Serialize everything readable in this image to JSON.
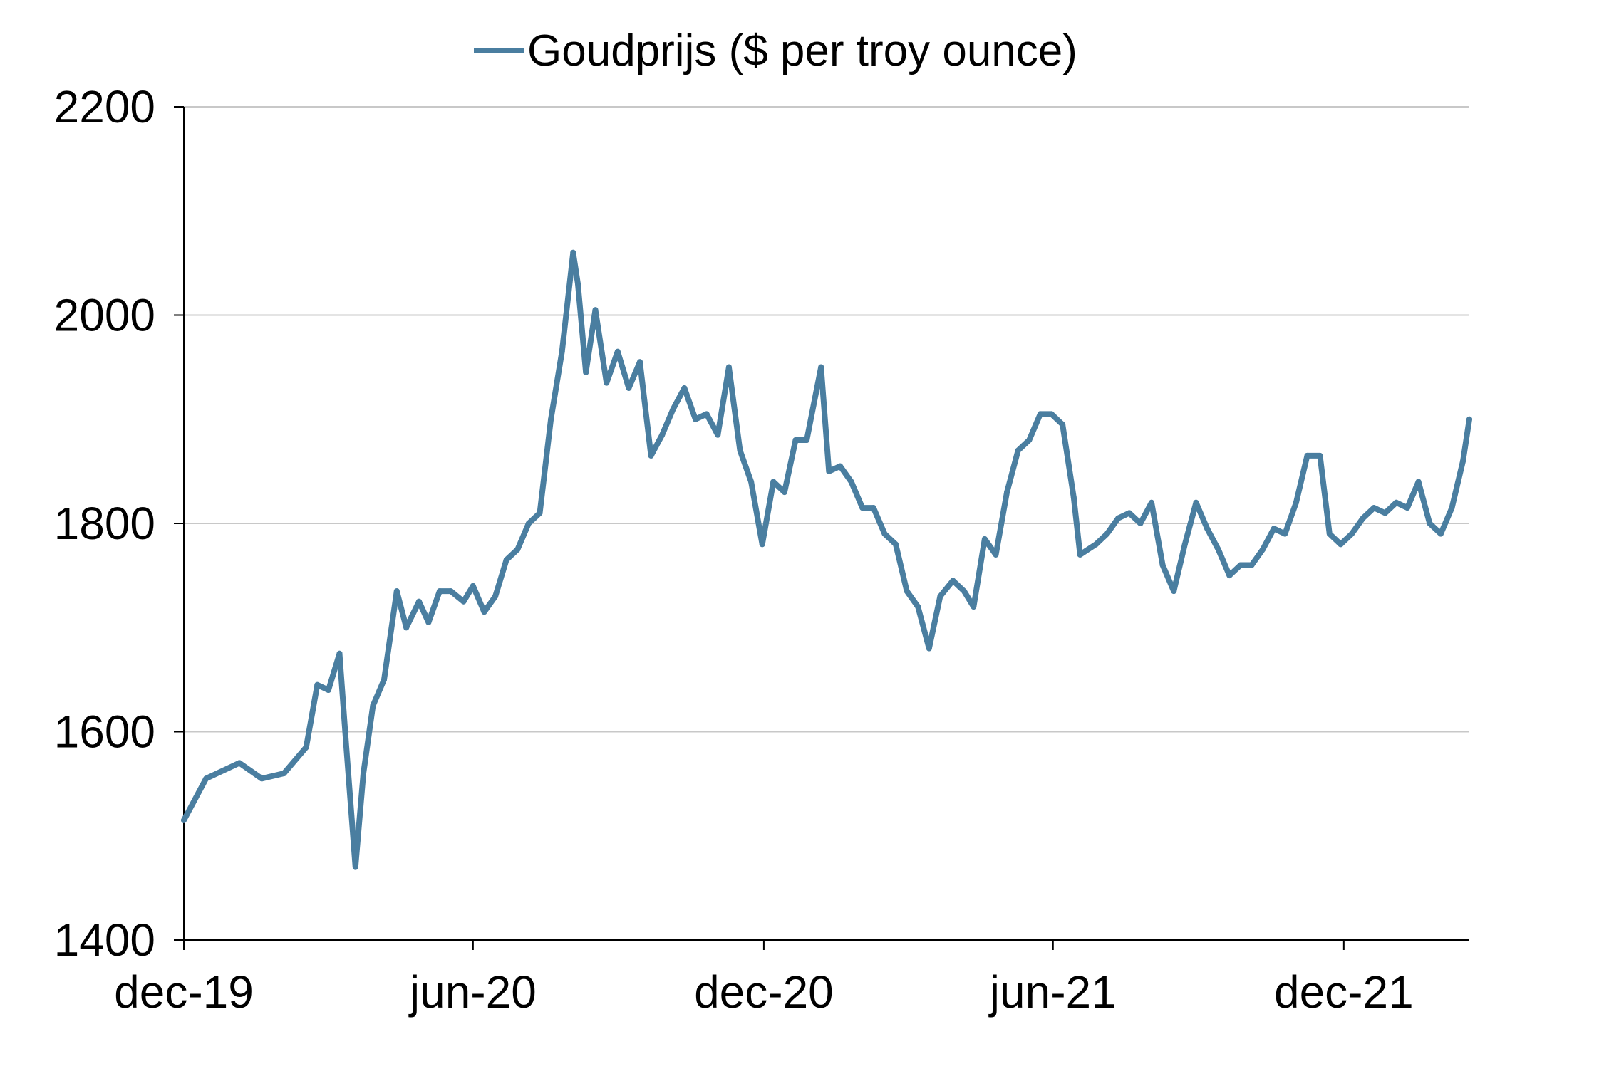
{
  "chart_data": {
    "type": "line",
    "title": "",
    "xlabel": "",
    "ylabel": "",
    "ylim": [
      1400,
      2200
    ],
    "yticks": [
      1400,
      1600,
      1800,
      2000,
      2200
    ],
    "xticks": [
      "dec-19",
      "jun-20",
      "dec-20",
      "jun-21",
      "dec-21"
    ],
    "grid": "horizontal",
    "legend_position": "top-center",
    "colors": {
      "series": "#4a7ea0",
      "grid": "#c8c8c8",
      "axis": "#000000"
    },
    "series": [
      {
        "name": "Goudprijs ($ per troy ounce)",
        "x": [
          "2019-12-02",
          "2019-12-16",
          "2020-01-06",
          "2020-01-20",
          "2020-02-03",
          "2020-02-17",
          "2020-02-24",
          "2020-03-02",
          "2020-03-09",
          "2020-03-13",
          "2020-03-19",
          "2020-03-24",
          "2020-03-30",
          "2020-04-06",
          "2020-04-14",
          "2020-04-20",
          "2020-04-28",
          "2020-05-04",
          "2020-05-11",
          "2020-05-18",
          "2020-05-26",
          "2020-06-01",
          "2020-06-08",
          "2020-06-15",
          "2020-06-22",
          "2020-06-29",
          "2020-07-06",
          "2020-07-13",
          "2020-07-20",
          "2020-07-27",
          "2020-08-03",
          "2020-08-06",
          "2020-08-11",
          "2020-08-17",
          "2020-08-24",
          "2020-08-31",
          "2020-09-07",
          "2020-09-14",
          "2020-09-21",
          "2020-09-28",
          "2020-10-05",
          "2020-10-12",
          "2020-10-19",
          "2020-10-26",
          "2020-11-02",
          "2020-11-09",
          "2020-11-16",
          "2020-11-23",
          "2020-11-30",
          "2020-12-07",
          "2020-12-14",
          "2020-12-21",
          "2020-12-28",
          "2021-01-06",
          "2021-01-11",
          "2021-01-18",
          "2021-01-25",
          "2021-02-01",
          "2021-02-08",
          "2021-02-15",
          "2021-02-22",
          "2021-03-01",
          "2021-03-08",
          "2021-03-15",
          "2021-03-22",
          "2021-03-30",
          "2021-04-06",
          "2021-04-12",
          "2021-04-19",
          "2021-04-26",
          "2021-05-03",
          "2021-05-10",
          "2021-05-17",
          "2021-05-24",
          "2021-05-31",
          "2021-06-07",
          "2021-06-14",
          "2021-06-18",
          "2021-06-28",
          "2021-07-05",
          "2021-07-12",
          "2021-07-19",
          "2021-07-26",
          "2021-08-02",
          "2021-08-09",
          "2021-08-16",
          "2021-08-23",
          "2021-08-30",
          "2021-09-06",
          "2021-09-13",
          "2021-09-20",
          "2021-09-27",
          "2021-10-04",
          "2021-10-11",
          "2021-10-18",
          "2021-10-25",
          "2021-11-01",
          "2021-11-08",
          "2021-11-16",
          "2021-11-22",
          "2021-11-29",
          "2021-12-06",
          "2021-12-13",
          "2021-12-20",
          "2021-12-27",
          "2022-01-03",
          "2022-01-10",
          "2022-01-17",
          "2022-01-24",
          "2022-01-31",
          "2022-02-07",
          "2022-02-14",
          "2022-02-18"
        ],
        "values": [
          1515,
          1555,
          1570,
          1555,
          1560,
          1585,
          1645,
          1640,
          1675,
          1590,
          1470,
          1560,
          1625,
          1650,
          1735,
          1700,
          1725,
          1705,
          1735,
          1735,
          1725,
          1740,
          1715,
          1730,
          1765,
          1775,
          1800,
          1810,
          1900,
          1965,
          2060,
          2030,
          1945,
          2005,
          1935,
          1965,
          1930,
          1955,
          1865,
          1885,
          1910,
          1930,
          1900,
          1905,
          1885,
          1950,
          1870,
          1840,
          1780,
          1840,
          1830,
          1880,
          1880,
          1950,
          1850,
          1855,
          1840,
          1815,
          1815,
          1790,
          1780,
          1735,
          1720,
          1680,
          1730,
          1745,
          1735,
          1720,
          1785,
          1770,
          1830,
          1870,
          1880,
          1905,
          1905,
          1895,
          1825,
          1770,
          1780,
          1790,
          1805,
          1810,
          1800,
          1820,
          1760,
          1735,
          1780,
          1820,
          1795,
          1775,
          1750,
          1760,
          1760,
          1775,
          1795,
          1790,
          1820,
          1865,
          1865,
          1790,
          1780,
          1790,
          1805,
          1815,
          1810,
          1820,
          1815,
          1840,
          1800,
          1790,
          1815,
          1860,
          1900
        ]
      }
    ]
  }
}
